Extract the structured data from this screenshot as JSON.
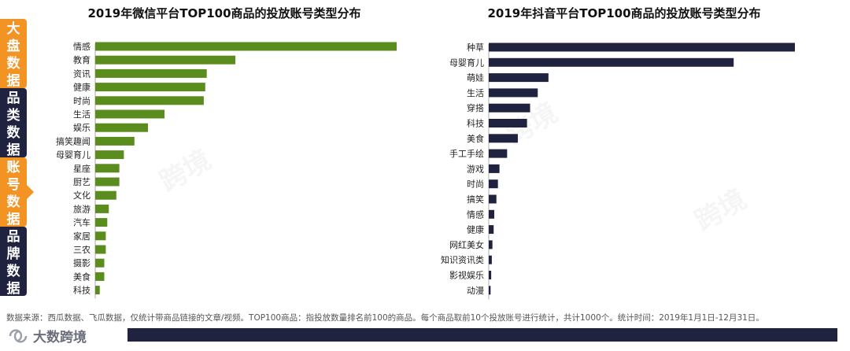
{
  "sidebar": {
    "tabs": [
      {
        "label": "大盘数据",
        "color": "#f39323",
        "active": false
      },
      {
        "label": "品类数据",
        "color": "#1f2340",
        "active": false
      },
      {
        "label": "账号数据",
        "color": "#f39323",
        "active": true
      },
      {
        "label": "品牌数据",
        "color": "#1f2340",
        "active": false
      }
    ]
  },
  "chart_data": [
    {
      "type": "bar",
      "orientation": "horizontal",
      "title": "2019年微信平台TOP100商品的投放账号类型分布",
      "color": "#5b8c1e",
      "categories": [
        "情感",
        "教育",
        "资讯",
        "健康",
        "时尚",
        "生活",
        "娱乐",
        "搞笑趣闻",
        "母婴育儿",
        "星座",
        "厨艺",
        "文化",
        "旅游",
        "汽车",
        "家居",
        "三农",
        "摄影",
        "美食",
        "科技"
      ],
      "values": [
        100,
        46.5,
        37,
        36.5,
        36,
        23,
        17.5,
        13,
        9.5,
        8,
        8,
        7,
        4.5,
        4,
        3.5,
        3.5,
        3,
        3,
        1.5
      ],
      "xlim": [
        0,
        100
      ]
    },
    {
      "type": "bar",
      "orientation": "horizontal",
      "title": "2019年抖音平台TOP100商品的投放账号类型分布",
      "color": "#1f2340",
      "categories": [
        "种草",
        "母婴育儿",
        "萌娃",
        "生活",
        "穿搭",
        "科技",
        "美食",
        "手工手绘",
        "游戏",
        "时尚",
        "搞笑",
        "情感",
        "健康",
        "网红美女",
        "知识资讯类",
        "影视娱乐",
        "动漫"
      ],
      "values": [
        100,
        80,
        19.5,
        16,
        13.5,
        12.5,
        9.5,
        6,
        3.5,
        3,
        2.5,
        1.8,
        1.6,
        1.2,
        1,
        0.8,
        0.6
      ],
      "xlim": [
        0,
        100
      ]
    }
  ],
  "footnote": "数据来源：西瓜数据、飞瓜数据，仅统计带商品链接的文章/视频。TOP100商品：指投放数量排名前100的商品。每个商品取前10个投放账号进行统计，共计1000个。统计时间：2019年1月1日-12月31日。",
  "brand": {
    "name": "大数跨境"
  },
  "watermark": "跨境"
}
